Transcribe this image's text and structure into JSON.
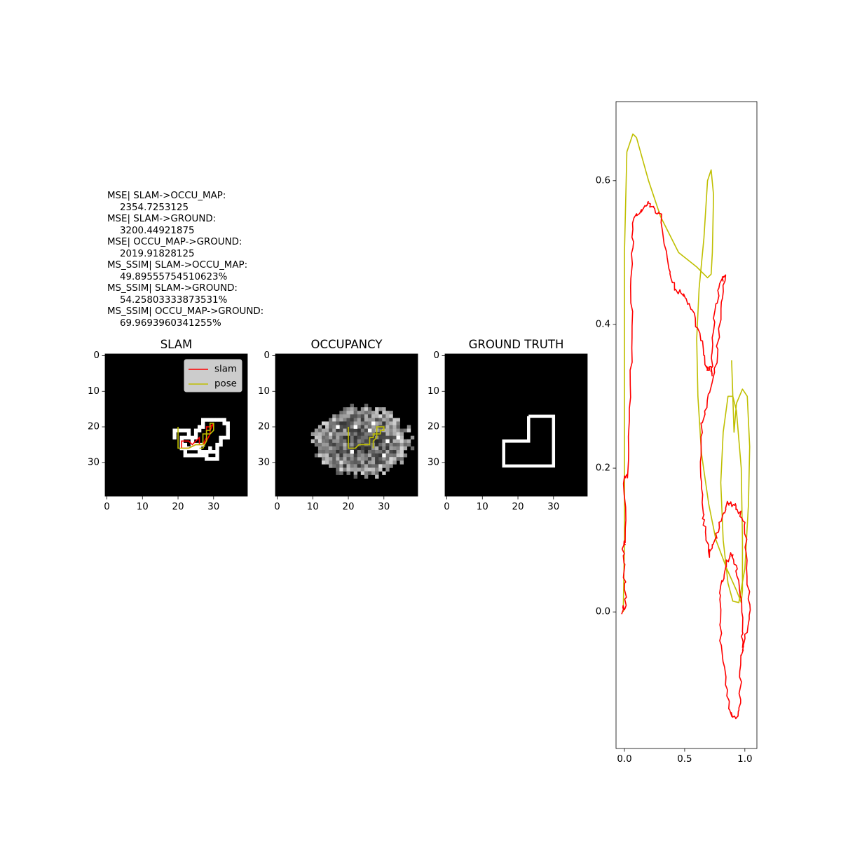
{
  "metrics": [
    {
      "label": "MSE| SLAM->OCCU_MAP:",
      "value": "2354.7253125"
    },
    {
      "label": "MSE| SLAM->GROUND:",
      "value": "3200.44921875"
    },
    {
      "label": "MSE| OCCU_MAP->GROUND:",
      "value": "2019.91828125"
    },
    {
      "label": "MS_SSIM| SLAM->OCCU_MAP:",
      "value": "49.89555754510623%"
    },
    {
      "label": "MS_SSIM| SLAM->GROUND:",
      "value": "54.25803333873531%"
    },
    {
      "label": "MS_SSIM| OCCU_MAP->GROUND:",
      "value": "69.9693960341255%"
    }
  ],
  "colors": {
    "slam": "#ff0000",
    "pose": "#bfbf00",
    "map_bg": "#000000",
    "map_fg": "#ffffff"
  },
  "chart_data": [
    {
      "type": "heatmap",
      "title": "SLAM",
      "xlim": [
        -0.5,
        39.5
      ],
      "ylim": [
        39.5,
        -0.5
      ],
      "xticks": [
        0,
        10,
        20,
        30
      ],
      "yticks": [
        0,
        10,
        20,
        30
      ],
      "legend": {
        "position": "top-right",
        "entries": [
          "slam",
          "pose"
        ]
      },
      "cells": [
        [
          19,
          21
        ],
        [
          20,
          21
        ],
        [
          21,
          21
        ],
        [
          22,
          21
        ],
        [
          23,
          21
        ],
        [
          19,
          22
        ],
        [
          23,
          22
        ],
        [
          19,
          23
        ],
        [
          21,
          23
        ],
        [
          22,
          23
        ],
        [
          23,
          23
        ],
        [
          21,
          24
        ],
        [
          21,
          25
        ],
        [
          22,
          25
        ],
        [
          21,
          26
        ],
        [
          22,
          26
        ],
        [
          23,
          26
        ],
        [
          24,
          26
        ],
        [
          25,
          26
        ],
        [
          26,
          26
        ],
        [
          22,
          27
        ],
        [
          26,
          27
        ],
        [
          22,
          28
        ],
        [
          23,
          28
        ],
        [
          24,
          28
        ],
        [
          25,
          28
        ],
        [
          26,
          28
        ],
        [
          27,
          28
        ],
        [
          28,
          28
        ],
        [
          28,
          29
        ],
        [
          29,
          29
        ],
        [
          30,
          29
        ],
        [
          27,
          18
        ],
        [
          28,
          18
        ],
        [
          29,
          18
        ],
        [
          30,
          18
        ],
        [
          31,
          18
        ],
        [
          32,
          18
        ],
        [
          33,
          18
        ],
        [
          33,
          19
        ],
        [
          34,
          19
        ],
        [
          34,
          20
        ],
        [
          34,
          21
        ],
        [
          34,
          22
        ],
        [
          34,
          23
        ],
        [
          33,
          23
        ],
        [
          32,
          23
        ],
        [
          32,
          24
        ],
        [
          32,
          25
        ],
        [
          31,
          25
        ],
        [
          31,
          26
        ],
        [
          31,
          27
        ],
        [
          31,
          28
        ],
        [
          31,
          29
        ],
        [
          30,
          27
        ],
        [
          29,
          26
        ],
        [
          29,
          27
        ],
        [
          28,
          27
        ],
        [
          27,
          27
        ],
        [
          26,
          25
        ],
        [
          27,
          25
        ],
        [
          27,
          19
        ],
        [
          27,
          20
        ],
        [
          26,
          20
        ],
        [
          26,
          21
        ],
        [
          25,
          21
        ],
        [
          25,
          22
        ],
        [
          25,
          23
        ],
        [
          24,
          23
        ],
        [
          24,
          24
        ],
        [
          24,
          25
        ],
        [
          25,
          25
        ]
      ],
      "series": [
        {
          "name": "slam",
          "points": [
            [
              21,
              26
            ],
            [
              21,
              24
            ],
            [
              23,
              24
            ],
            [
              24,
              25
            ],
            [
              25,
              24
            ],
            [
              26,
              23
            ],
            [
              26,
              25
            ],
            [
              27,
              25
            ],
            [
              28,
              23
            ],
            [
              28,
              21
            ],
            [
              28,
              20
            ],
            [
              29,
              20
            ],
            [
              30,
              19
            ],
            [
              29,
              21
            ],
            [
              29,
              22
            ],
            [
              28,
              24
            ],
            [
              27,
              25
            ],
            [
              25,
              25
            ],
            [
              23,
              26
            ],
            [
              21,
              26
            ]
          ]
        },
        {
          "name": "pose",
          "points": [
            [
              20,
              20
            ],
            [
              20,
              26
            ],
            [
              23,
              26
            ],
            [
              25,
              25
            ],
            [
              27,
              25
            ],
            [
              27,
              22
            ],
            [
              28,
              22
            ],
            [
              28,
              21
            ],
            [
              29,
              21
            ],
            [
              29,
              19
            ],
            [
              30,
              19
            ],
            [
              30,
              21
            ],
            [
              29,
              22
            ],
            [
              28,
              22
            ],
            [
              28,
              24
            ],
            [
              27,
              26
            ],
            [
              26,
              26
            ]
          ]
        }
      ]
    },
    {
      "type": "heatmap",
      "title": "OCCUPANCY",
      "xlim": [
        -0.5,
        39.5
      ],
      "ylim": [
        39.5,
        -0.5
      ],
      "xticks": [
        0,
        10,
        20,
        30
      ],
      "yticks": [
        0,
        10,
        20,
        30
      ],
      "blob": {
        "cx": 24,
        "cy": 24,
        "rx": 13,
        "ry": 9.5
      },
      "highlights": [
        [
          17,
          20
        ],
        [
          22,
          20
        ],
        [
          26,
          21
        ],
        [
          31,
          24
        ],
        [
          34,
          23
        ],
        [
          27,
          19
        ],
        [
          21,
          27
        ],
        [
          30,
          28
        ]
      ],
      "series": [
        {
          "name": "pose",
          "points": [
            [
              20,
              20
            ],
            [
              20,
              26
            ],
            [
              22,
              26
            ],
            [
              23,
              25
            ],
            [
              26,
              25
            ],
            [
              26,
              23
            ],
            [
              27,
              23
            ],
            [
              27,
              22
            ],
            [
              28,
              22
            ],
            [
              28,
              20
            ],
            [
              30,
              20
            ],
            [
              30,
              21
            ],
            [
              29,
              21
            ],
            [
              29,
              22
            ],
            [
              28,
              22
            ],
            [
              28,
              23
            ],
            [
              27,
              24
            ],
            [
              27,
              26
            ]
          ]
        }
      ]
    },
    {
      "type": "heatmap",
      "title": "GROUND TRUTH",
      "xlim": [
        -0.5,
        39.5
      ],
      "ylim": [
        39.5,
        -0.5
      ],
      "xticks": [
        0,
        10,
        20,
        30
      ],
      "yticks": [
        0,
        10,
        20,
        30
      ],
      "outline": [
        [
          23,
          17
        ],
        [
          30,
          17
        ],
        [
          30,
          31
        ],
        [
          16,
          31
        ],
        [
          16,
          24
        ],
        [
          23,
          24
        ],
        [
          23,
          17
        ]
      ]
    },
    {
      "type": "line",
      "title": "",
      "xlim": [
        -0.07,
        1.1
      ],
      "ylim": [
        -0.19,
        0.71
      ],
      "xticks": [
        0.0,
        0.5,
        1.0
      ],
      "xticklabels": [
        "0.0",
        "0.5",
        "1.0"
      ],
      "yticks": [
        0.0,
        0.2,
        0.4,
        0.6
      ],
      "yticklabels": [
        "0.0",
        "0.2",
        "0.4",
        "0.6"
      ],
      "series": [
        {
          "name": "pose",
          "points": [
            [
              -0.01,
              0.0
            ],
            [
              0.0,
              0.1
            ],
            [
              0.0,
              0.5
            ],
            [
              0.02,
              0.64
            ],
            [
              0.07,
              0.665
            ],
            [
              0.1,
              0.66
            ],
            [
              0.2,
              0.6
            ],
            [
              0.3,
              0.55
            ],
            [
              0.45,
              0.5
            ],
            [
              0.6,
              0.48
            ],
            [
              0.69,
              0.465
            ],
            [
              0.72,
              0.47
            ],
            [
              0.73,
              0.5
            ],
            [
              0.74,
              0.58
            ],
            [
              0.72,
              0.615
            ],
            [
              0.69,
              0.6
            ],
            [
              0.66,
              0.52
            ],
            [
              0.62,
              0.45
            ],
            [
              0.6,
              0.38
            ],
            [
              0.61,
              0.3
            ],
            [
              0.64,
              0.22
            ],
            [
              0.7,
              0.15
            ],
            [
              0.76,
              0.1
            ],
            [
              0.85,
              0.06
            ],
            [
              0.93,
              0.03
            ],
            [
              0.97,
              0.013
            ],
            [
              0.98,
              0.03
            ],
            [
              0.98,
              0.1
            ],
            [
              0.97,
              0.2
            ],
            [
              0.93,
              0.28
            ],
            [
              0.9,
              0.3
            ],
            [
              0.86,
              0.3
            ],
            [
              0.82,
              0.25
            ],
            [
              0.8,
              0.18
            ],
            [
              0.82,
              0.1
            ],
            [
              0.86,
              0.04
            ],
            [
              0.9,
              0.015
            ],
            [
              0.95,
              0.013
            ],
            [
              1.0,
              0.06
            ],
            [
              1.03,
              0.15
            ],
            [
              1.04,
              0.23
            ],
            [
              1.02,
              0.3
            ],
            [
              0.98,
              0.31
            ],
            [
              0.93,
              0.29
            ],
            [
              0.91,
              0.25
            ],
            [
              0.89,
              0.35
            ]
          ]
        },
        {
          "name": "slam",
          "points": [
            [
              -0.02,
              0.0
            ],
            [
              0.01,
              0.01
            ],
            [
              0.0,
              0.05
            ],
            [
              -0.01,
              0.09
            ],
            [
              0.01,
              0.1
            ],
            [
              0.0,
              0.19
            ],
            [
              0.03,
              0.19
            ],
            [
              0.05,
              0.3
            ],
            [
              0.06,
              0.4
            ],
            [
              0.06,
              0.5
            ],
            [
              0.08,
              0.55
            ],
            [
              0.16,
              0.56
            ],
            [
              0.2,
              0.57
            ],
            [
              0.25,
              0.56
            ],
            [
              0.3,
              0.55
            ],
            [
              0.37,
              0.48
            ],
            [
              0.42,
              0.45
            ],
            [
              0.5,
              0.44
            ],
            [
              0.56,
              0.42
            ],
            [
              0.64,
              0.38
            ],
            [
              0.68,
              0.34
            ],
            [
              0.71,
              0.34
            ],
            [
              0.72,
              0.33
            ],
            [
              0.73,
              0.36
            ],
            [
              0.75,
              0.42
            ],
            [
              0.8,
              0.46
            ],
            [
              0.84,
              0.47
            ],
            [
              0.8,
              0.42
            ],
            [
              0.76,
              0.35
            ],
            [
              0.7,
              0.3
            ],
            [
              0.64,
              0.26
            ],
            [
              0.63,
              0.2
            ],
            [
              0.65,
              0.14
            ],
            [
              0.67,
              0.11
            ],
            [
              0.7,
              0.08
            ],
            [
              0.75,
              0.1
            ],
            [
              0.8,
              0.13
            ],
            [
              0.85,
              0.15
            ],
            [
              0.9,
              0.15
            ],
            [
              0.95,
              0.14
            ],
            [
              1.0,
              0.12
            ],
            [
              1.02,
              0.06
            ],
            [
              1.04,
              0.0
            ],
            [
              1.0,
              -0.04
            ],
            [
              0.97,
              -0.06
            ],
            [
              0.96,
              -0.12
            ],
            [
              0.93,
              -0.15
            ],
            [
              0.88,
              -0.14
            ],
            [
              0.84,
              -0.1
            ],
            [
              0.8,
              -0.04
            ],
            [
              0.79,
              0.02
            ],
            [
              0.82,
              0.05
            ],
            [
              0.85,
              0.07
            ],
            [
              0.89,
              0.08
            ],
            [
              0.93,
              0.06
            ],
            [
              0.96,
              0.03
            ],
            [
              0.98,
              -0.02
            ],
            [
              0.98,
              -0.05
            ]
          ]
        }
      ]
    }
  ]
}
